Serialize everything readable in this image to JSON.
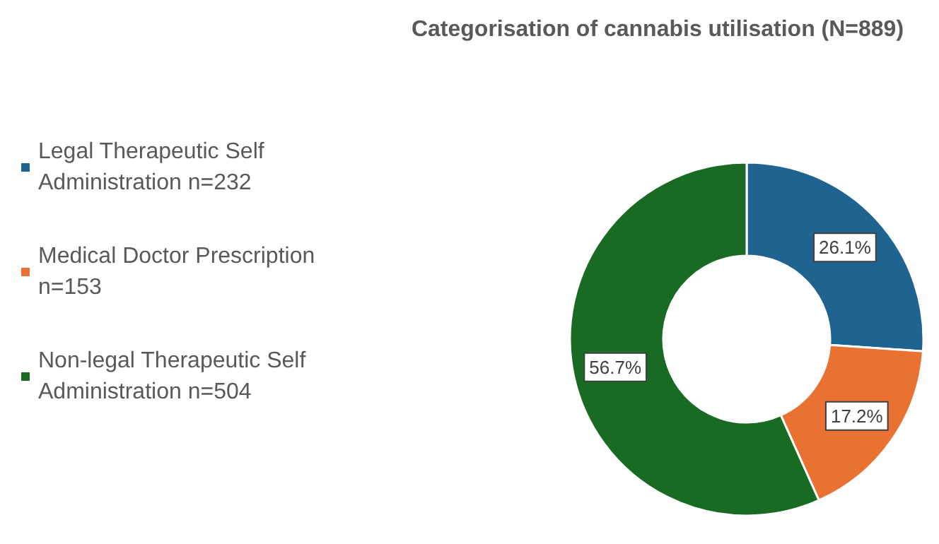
{
  "chart_data": {
    "type": "donut",
    "title": "Categorisation of cannabis utilisation (N=889)",
    "categories": [
      "Legal Therapeutic Self Administration n=232",
      "Medical Doctor Prescription n=153",
      "Non-legal Therapeutic Self Administration n=504"
    ],
    "values": [
      26.1,
      17.2,
      56.7
    ],
    "colors": [
      "#1f6391",
      "#e97132",
      "#196b24"
    ],
    "value_labels": [
      "26.1%",
      "17.2%",
      "56.7%"
    ],
    "legend": "left"
  }
}
